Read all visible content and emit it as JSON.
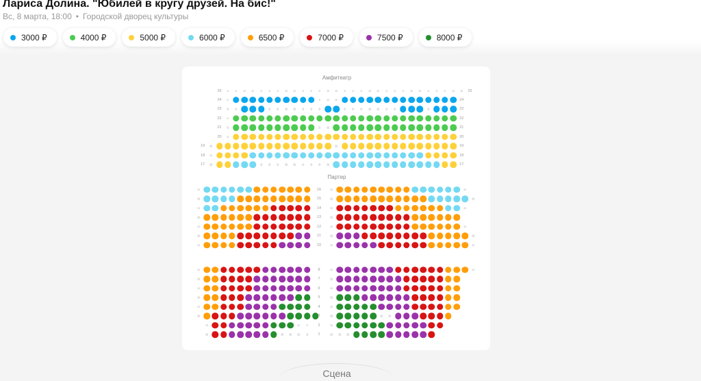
{
  "event": {
    "title": "Лариса Долина. \"Юбилей в кругу друзей. На бис!\"",
    "date": "Вс, 8 марта, 18:00",
    "separator": "•",
    "venue": "Городской дворец культуры"
  },
  "prices": [
    {
      "key": "b",
      "label": "3000 ₽",
      "color": "#0aa6ee"
    },
    {
      "key": "g",
      "label": "4000 ₽",
      "color": "#4ccb50"
    },
    {
      "key": "y",
      "label": "5000 ₽",
      "color": "#fed13b"
    },
    {
      "key": "c",
      "label": "6000 ₽",
      "color": "#74d9f2"
    },
    {
      "key": "o",
      "label": "6500 ₽",
      "color": "#ff9e0b"
    },
    {
      "key": "r",
      "label": "7000 ₽",
      "color": "#d81414"
    },
    {
      "key": "p",
      "label": "7500 ₽",
      "color": "#9a32aa"
    },
    {
      "key": "d",
      "label": "8000 ₽",
      "color": "#258e2e"
    }
  ],
  "legend_note": "seat codes: letter = price category key, '.' = unavailable seat, space = no seat",
  "amphitheater": {
    "label": "Амфитеатр",
    "rows": [
      {
        "row": "25",
        "seats": "  ............................."
      },
      {
        "row": "24",
        "seats": "  .bbbbbbbbbb...bbbbbbbbbbbbbb"
      },
      {
        "row": "23",
        "seats": "  ..bbb.......bb.......bbb.bbb"
      },
      {
        "row": "22",
        "seats": "  .ggggggggggggggggggggggggggg"
      },
      {
        "row": "21",
        "seats": "  .gggggggggg..ggggggggggggggg"
      },
      {
        "row": "20",
        "seats": "  .yyyyyyyyyyyyyyyyyyyyyyyyyyy"
      },
      {
        "row": "19",
        "seats": ".yyyyyyyyyyyyyy.yyyyyyyyyyyyyy"
      },
      {
        "row": "18",
        "seats": ".yyyycccccccccccccccccccccyyyy"
      },
      {
        "row": "17",
        "seats": ".yyccc.........cccccccccccccyy"
      }
    ]
  },
  "parterre": {
    "label": "Партер",
    "upper": [
      {
        "row": "16",
        "left": ".ccccccooooooo",
        "right": ".ooooooooocccccc."
      },
      {
        "row": "15",
        "left": ".ccccooooooooo",
        "right": ".oooooooooooccccc."
      },
      {
        "row": "14",
        "left": ".ccoooooorrrrr",
        "right": ".rrrrrrroooooocc."
      },
      {
        "row": "13",
        "left": ".oooooorrrrrrr",
        "right": ".rrrrrrrrroooooo"
      },
      {
        "row": "12",
        "left": ".oooooorrrrrrr",
        "right": ".rrrrrrrrroooooo."
      },
      {
        "row": "11",
        "left": ".oooorrrrrrrpp",
        "right": ".ppprrrrrrrrooooo."
      },
      {
        "row": "10",
        "left": ".oooorrrrrpppp",
        "right": ".ppppprrrrrrooooo."
      }
    ],
    "lower": [
      {
        "row": "8",
        "left": ".oorrrrrpppppp",
        "right": ".ppppppprrrrrrooo."
      },
      {
        "row": "7",
        "left": ".oorrrrppppppp",
        "right": ".pppppppprrrrroo"
      },
      {
        "row": "6",
        "left": ".oorrrrppppppp",
        "right": ".pppppppprrrrroo"
      },
      {
        "row": "5",
        "left": ".oorrrppppppdd",
        "right": ".dddpppppprrrroo"
      },
      {
        "row": "4",
        "left": ".oorrrppppdddd",
        "right": ".dddddpppprrrroo"
      },
      {
        "row": "3",
        "left": ".orrrppppppdddd",
        "right": ".ddddd..ppprrro"
      },
      {
        "row": "2",
        "left": " .rrpppppddd..",
        "right": ".ddddddppppprr"
      },
      {
        "row": "1",
        "left": " .rrpppppd....",
        "right": "...ddddpppppr"
      }
    ]
  },
  "stage": {
    "label": "Сцена"
  }
}
